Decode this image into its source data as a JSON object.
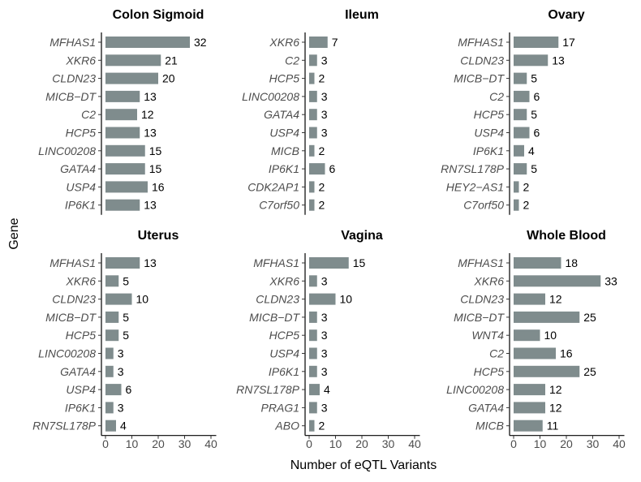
{
  "chart_data": {
    "type": "bar",
    "orientation": "horizontal",
    "xlabel": "Number of eQTL Variants",
    "ylabel": "Gene",
    "xlim": [
      0,
      42
    ],
    "xticks": [
      0,
      10,
      20,
      30,
      40
    ],
    "bar_color": "#7f8c8d",
    "grid": false,
    "panels": [
      {
        "title": "Colon Sigmoid",
        "categories": [
          "MFHAS1",
          "XKR6",
          "CLDN23",
          "MICB−DT",
          "C2",
          "HCP5",
          "LINC00208",
          "GATA4",
          "USP4",
          "IP6K1"
        ],
        "values": [
          32,
          21,
          20,
          13,
          12,
          13,
          15,
          15,
          16,
          13
        ]
      },
      {
        "title": "Ileum",
        "categories": [
          "XKR6",
          "C2",
          "HCP5",
          "LINC00208",
          "GATA4",
          "USP4",
          "MICB",
          "IP6K1",
          "CDK2AP1",
          "C7orf50"
        ],
        "values": [
          7,
          3,
          2,
          3,
          3,
          3,
          2,
          6,
          2,
          2
        ]
      },
      {
        "title": "Ovary",
        "categories": [
          "MFHAS1",
          "CLDN23",
          "MICB−DT",
          "C2",
          "HCP5",
          "USP4",
          "IP6K1",
          "RN7SL178P",
          "HEY2−AS1",
          "C7orf50"
        ],
        "values": [
          17,
          13,
          5,
          6,
          5,
          6,
          4,
          5,
          2,
          2
        ]
      },
      {
        "title": "Uterus",
        "categories": [
          "MFHAS1",
          "XKR6",
          "CLDN23",
          "MICB−DT",
          "HCP5",
          "LINC00208",
          "GATA4",
          "USP4",
          "IP6K1",
          "RN7SL178P"
        ],
        "values": [
          13,
          5,
          10,
          5,
          5,
          3,
          3,
          6,
          3,
          4
        ]
      },
      {
        "title": "Vagina",
        "categories": [
          "MFHAS1",
          "XKR6",
          "CLDN23",
          "MICB−DT",
          "HCP5",
          "USP4",
          "IP6K1",
          "RN7SL178P",
          "PRAG1",
          "ABO"
        ],
        "values": [
          15,
          3,
          10,
          3,
          3,
          3,
          3,
          4,
          3,
          2
        ]
      },
      {
        "title": "Whole Blood",
        "categories": [
          "MFHAS1",
          "XKR6",
          "CLDN23",
          "MICB−DT",
          "WNT4",
          "C2",
          "HCP5",
          "LINC00208",
          "GATA4",
          "MICB"
        ],
        "values": [
          18,
          33,
          12,
          25,
          10,
          16,
          25,
          12,
          12,
          11
        ]
      }
    ]
  }
}
